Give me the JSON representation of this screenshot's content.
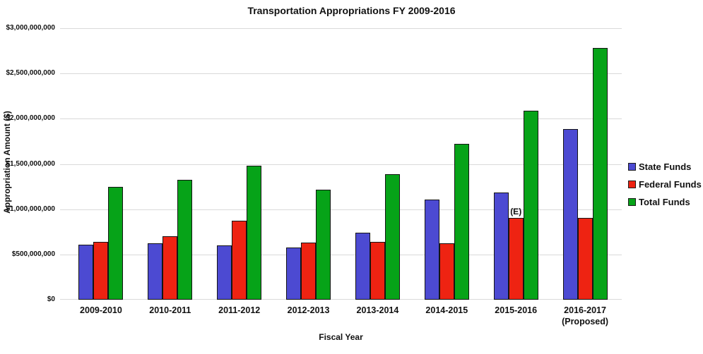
{
  "title": "Transportation Appropriations FY 2009-2016",
  "axes": {
    "y_title": "Appropriation Amount ($)",
    "x_title": "Fiscal Year",
    "y_ticks": [
      "$3,000,000,000",
      "$2,500,000,000",
      "$2,000,000,000",
      "$1,500,000,000",
      "$1,000,000,000",
      "$500,000,000",
      "$0"
    ]
  },
  "legend": {
    "items": [
      {
        "label": "State Funds",
        "color": "#4c4ad2"
      },
      {
        "label": "Federal Funds",
        "color": "#ee2312"
      },
      {
        "label": "Total Funds",
        "color": "#06a318"
      }
    ]
  },
  "chart_data": {
    "type": "bar",
    "categories": [
      "2009-2010",
      "2010-2011",
      "2011-2012",
      "2012-2013",
      "2013-2014",
      "2014-2015",
      "2015-2016",
      "2016-2017\n(Proposed)"
    ],
    "series": [
      {
        "name": "State Funds",
        "color": "#4c4ad2",
        "values": [
          610000000,
          620000000,
          600000000,
          580000000,
          740000000,
          1105000000,
          1185000000,
          1885000000
        ]
      },
      {
        "name": "Federal Funds",
        "color": "#ee2312",
        "values": [
          640000000,
          700000000,
          875000000,
          635000000,
          640000000,
          620000000,
          900000000,
          900000000
        ]
      },
      {
        "name": "Total Funds",
        "color": "#06a318",
        "values": [
          1250000000,
          1325000000,
          1480000000,
          1215000000,
          1385000000,
          1725000000,
          2085000000,
          2785000000
        ]
      }
    ],
    "title": "Transportation Appropriations FY 2009-2016",
    "xlabel": "Fiscal Year",
    "ylabel": "Appropriation Amount ($)",
    "ylim": [
      0,
      3000000000
    ],
    "ytick_step": 500000000,
    "grid": true,
    "legend_position": "right",
    "annotations": [
      {
        "text": "(E)",
        "category_index": 6,
        "series_index": 1
      }
    ]
  },
  "style": {
    "gridline_color": "#d9d9d9",
    "bar_border_color": "#141414"
  }
}
